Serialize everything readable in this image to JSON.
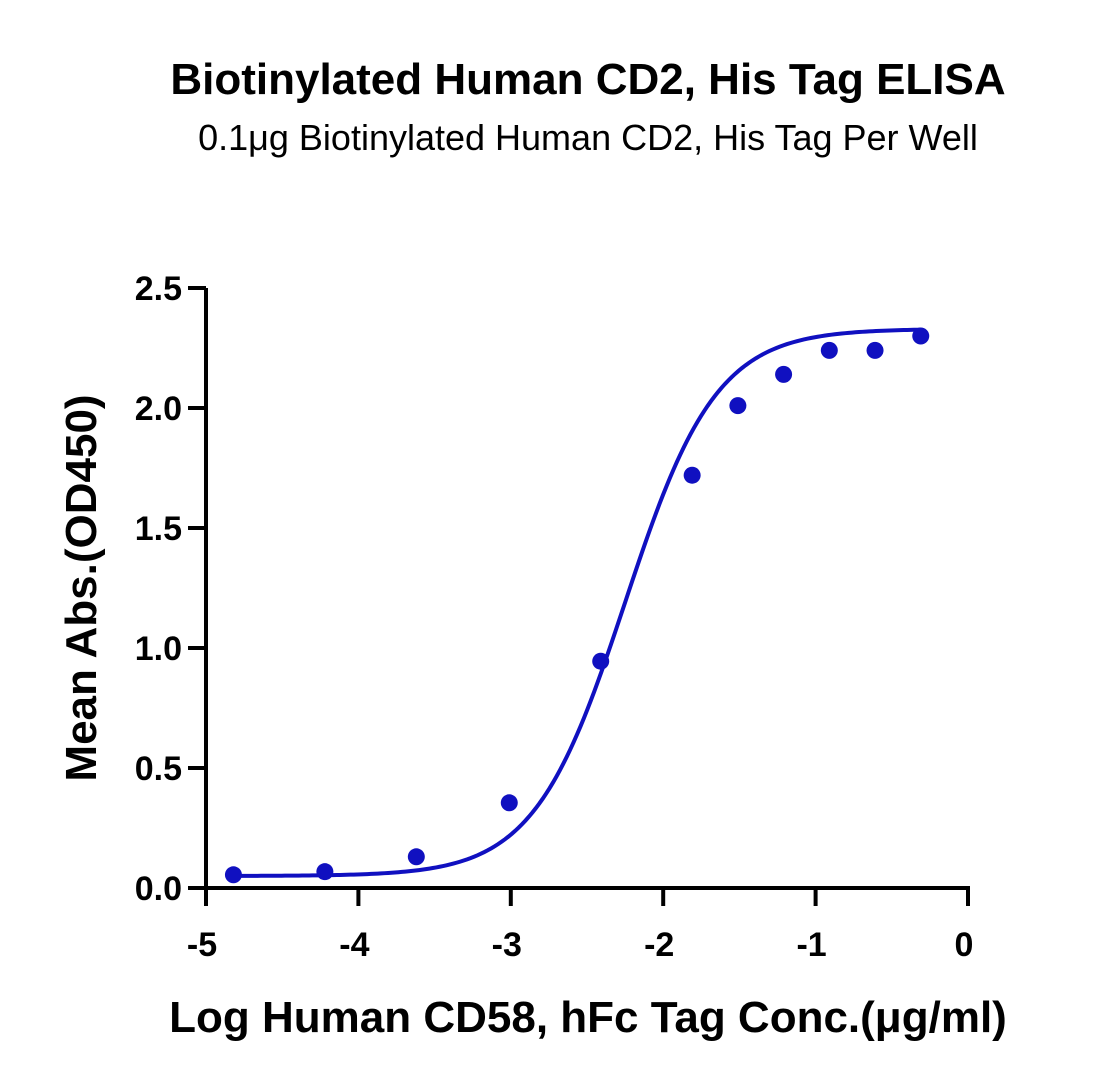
{
  "chart_data": {
    "type": "scatter",
    "title": "Biotinylated Human CD2, His Tag ELISA",
    "subtitle": "0.1μg Biotinylated Human CD2, His Tag Per Well",
    "xlabel": "Log Human CD58, hFc Tag Conc.(μg/ml)",
    "ylabel": "Mean Abs.(OD450)",
    "xlim": [
      -5,
      0
    ],
    "ylim": [
      0,
      2.5
    ],
    "xticks": [
      "-5",
      "-4",
      "-3",
      "-2",
      "-1",
      "0"
    ],
    "yticks": [
      "0.0",
      "0.5",
      "1.0",
      "1.5",
      "2.0",
      "2.5"
    ],
    "grid": false,
    "color": "#1010c0",
    "series": [
      {
        "x": [
          -4.82,
          -4.22,
          -3.62,
          -3.01,
          -2.41,
          -1.81,
          -1.51,
          -1.21,
          -0.91,
          -0.61,
          -0.31
        ],
        "y": [
          0.055,
          0.068,
          0.13,
          0.355,
          0.945,
          1.72,
          2.01,
          2.14,
          2.24,
          2.24,
          2.3
        ],
        "fit": "sigmoid"
      }
    ]
  }
}
